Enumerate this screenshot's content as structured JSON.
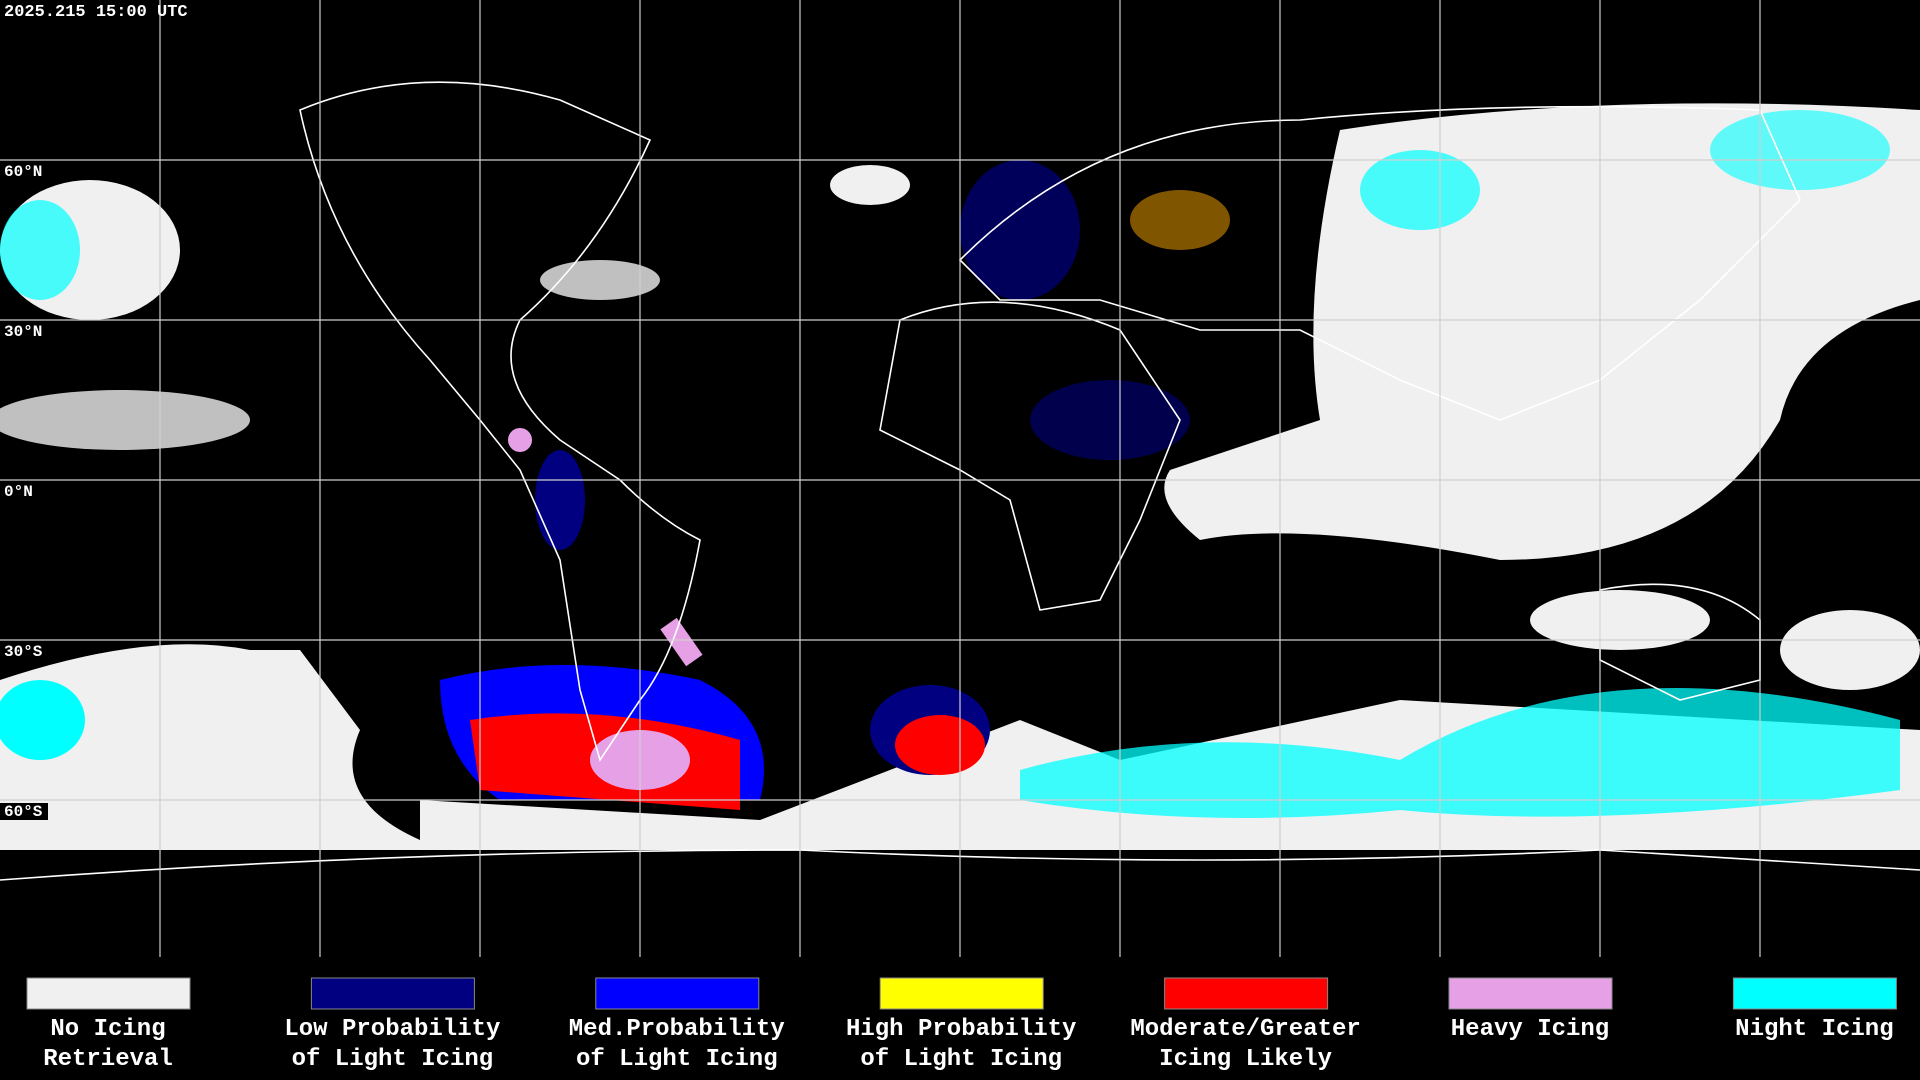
{
  "header": {
    "timestamp": "2025.215 15:00 UTC"
  },
  "map": {
    "latitude_labels": [
      "60°N",
      "30°N",
      "0°N",
      "30°S",
      "60°S"
    ]
  },
  "legend": [
    {
      "color": "#f0f0f0",
      "lines": [
        "No Icing",
        "Retrieval"
      ]
    },
    {
      "color": "#000080",
      "lines": [
        "Low Probability",
        "of Light Icing"
      ]
    },
    {
      "color": "#0000ff",
      "lines": [
        "Med.Probability",
        "of Light Icing"
      ]
    },
    {
      "color": "#ffff00",
      "lines": [
        "High Probability",
        "of Light Icing"
      ]
    },
    {
      "color": "#ff0000",
      "lines": [
        "Moderate/Greater",
        "Icing Likely"
      ]
    },
    {
      "color": "#e6a0e6",
      "lines": [
        "Heavy Icing",
        ""
      ]
    },
    {
      "color": "#00ffff",
      "lines": [
        "Night Icing",
        ""
      ]
    }
  ]
}
